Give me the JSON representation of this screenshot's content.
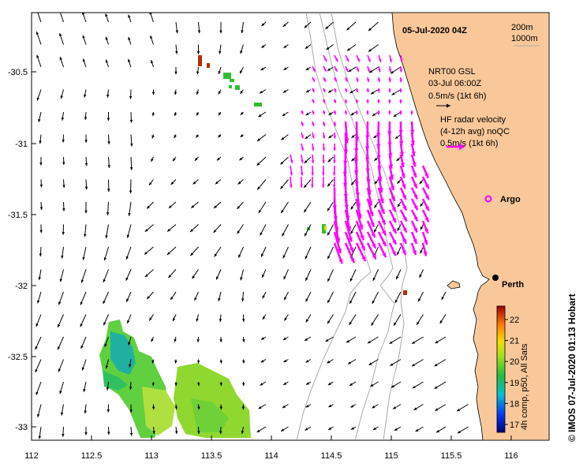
{
  "map": {
    "date_title": "05-Jul-2020 04Z",
    "scale_labels": [
      "200m",
      "1000m"
    ],
    "x_ticks": [
      "112",
      "112.5",
      "113",
      "113.5",
      "114",
      "114.5",
      "115",
      "115.5",
      "116"
    ],
    "y_ticks": [
      "-30.5",
      "-31",
      "-31.5",
      "-32",
      "-32.5",
      "-33"
    ],
    "legend": {
      "gsl_line1": "NRT00 GSL",
      "gsl_line2": "03-Jul 06:00Z",
      "gsl_line3": "0.5m/s (1kt 6h)",
      "hf_line1": "HF radar velocity",
      "hf_line2": "(4-12h avg) noQC",
      "hf_line3": "0.5m/s (1kt 6h)",
      "argo": "Argo"
    },
    "city": "Perth",
    "colorbar": {
      "ticks": [
        "22",
        "21",
        "20",
        "19",
        "18",
        "17"
      ],
      "label": "4h comp, p50, All Sats"
    },
    "credit": "© IMOS 07-Jul-2020 01:13 Hobart",
    "colors": {
      "land": "#f9c89a",
      "gsl_arrow": "#000000",
      "hf_arrow": "#ff00ff",
      "argo": "#ff00ff",
      "bathymetry": "#aaaaaa"
    }
  }
}
